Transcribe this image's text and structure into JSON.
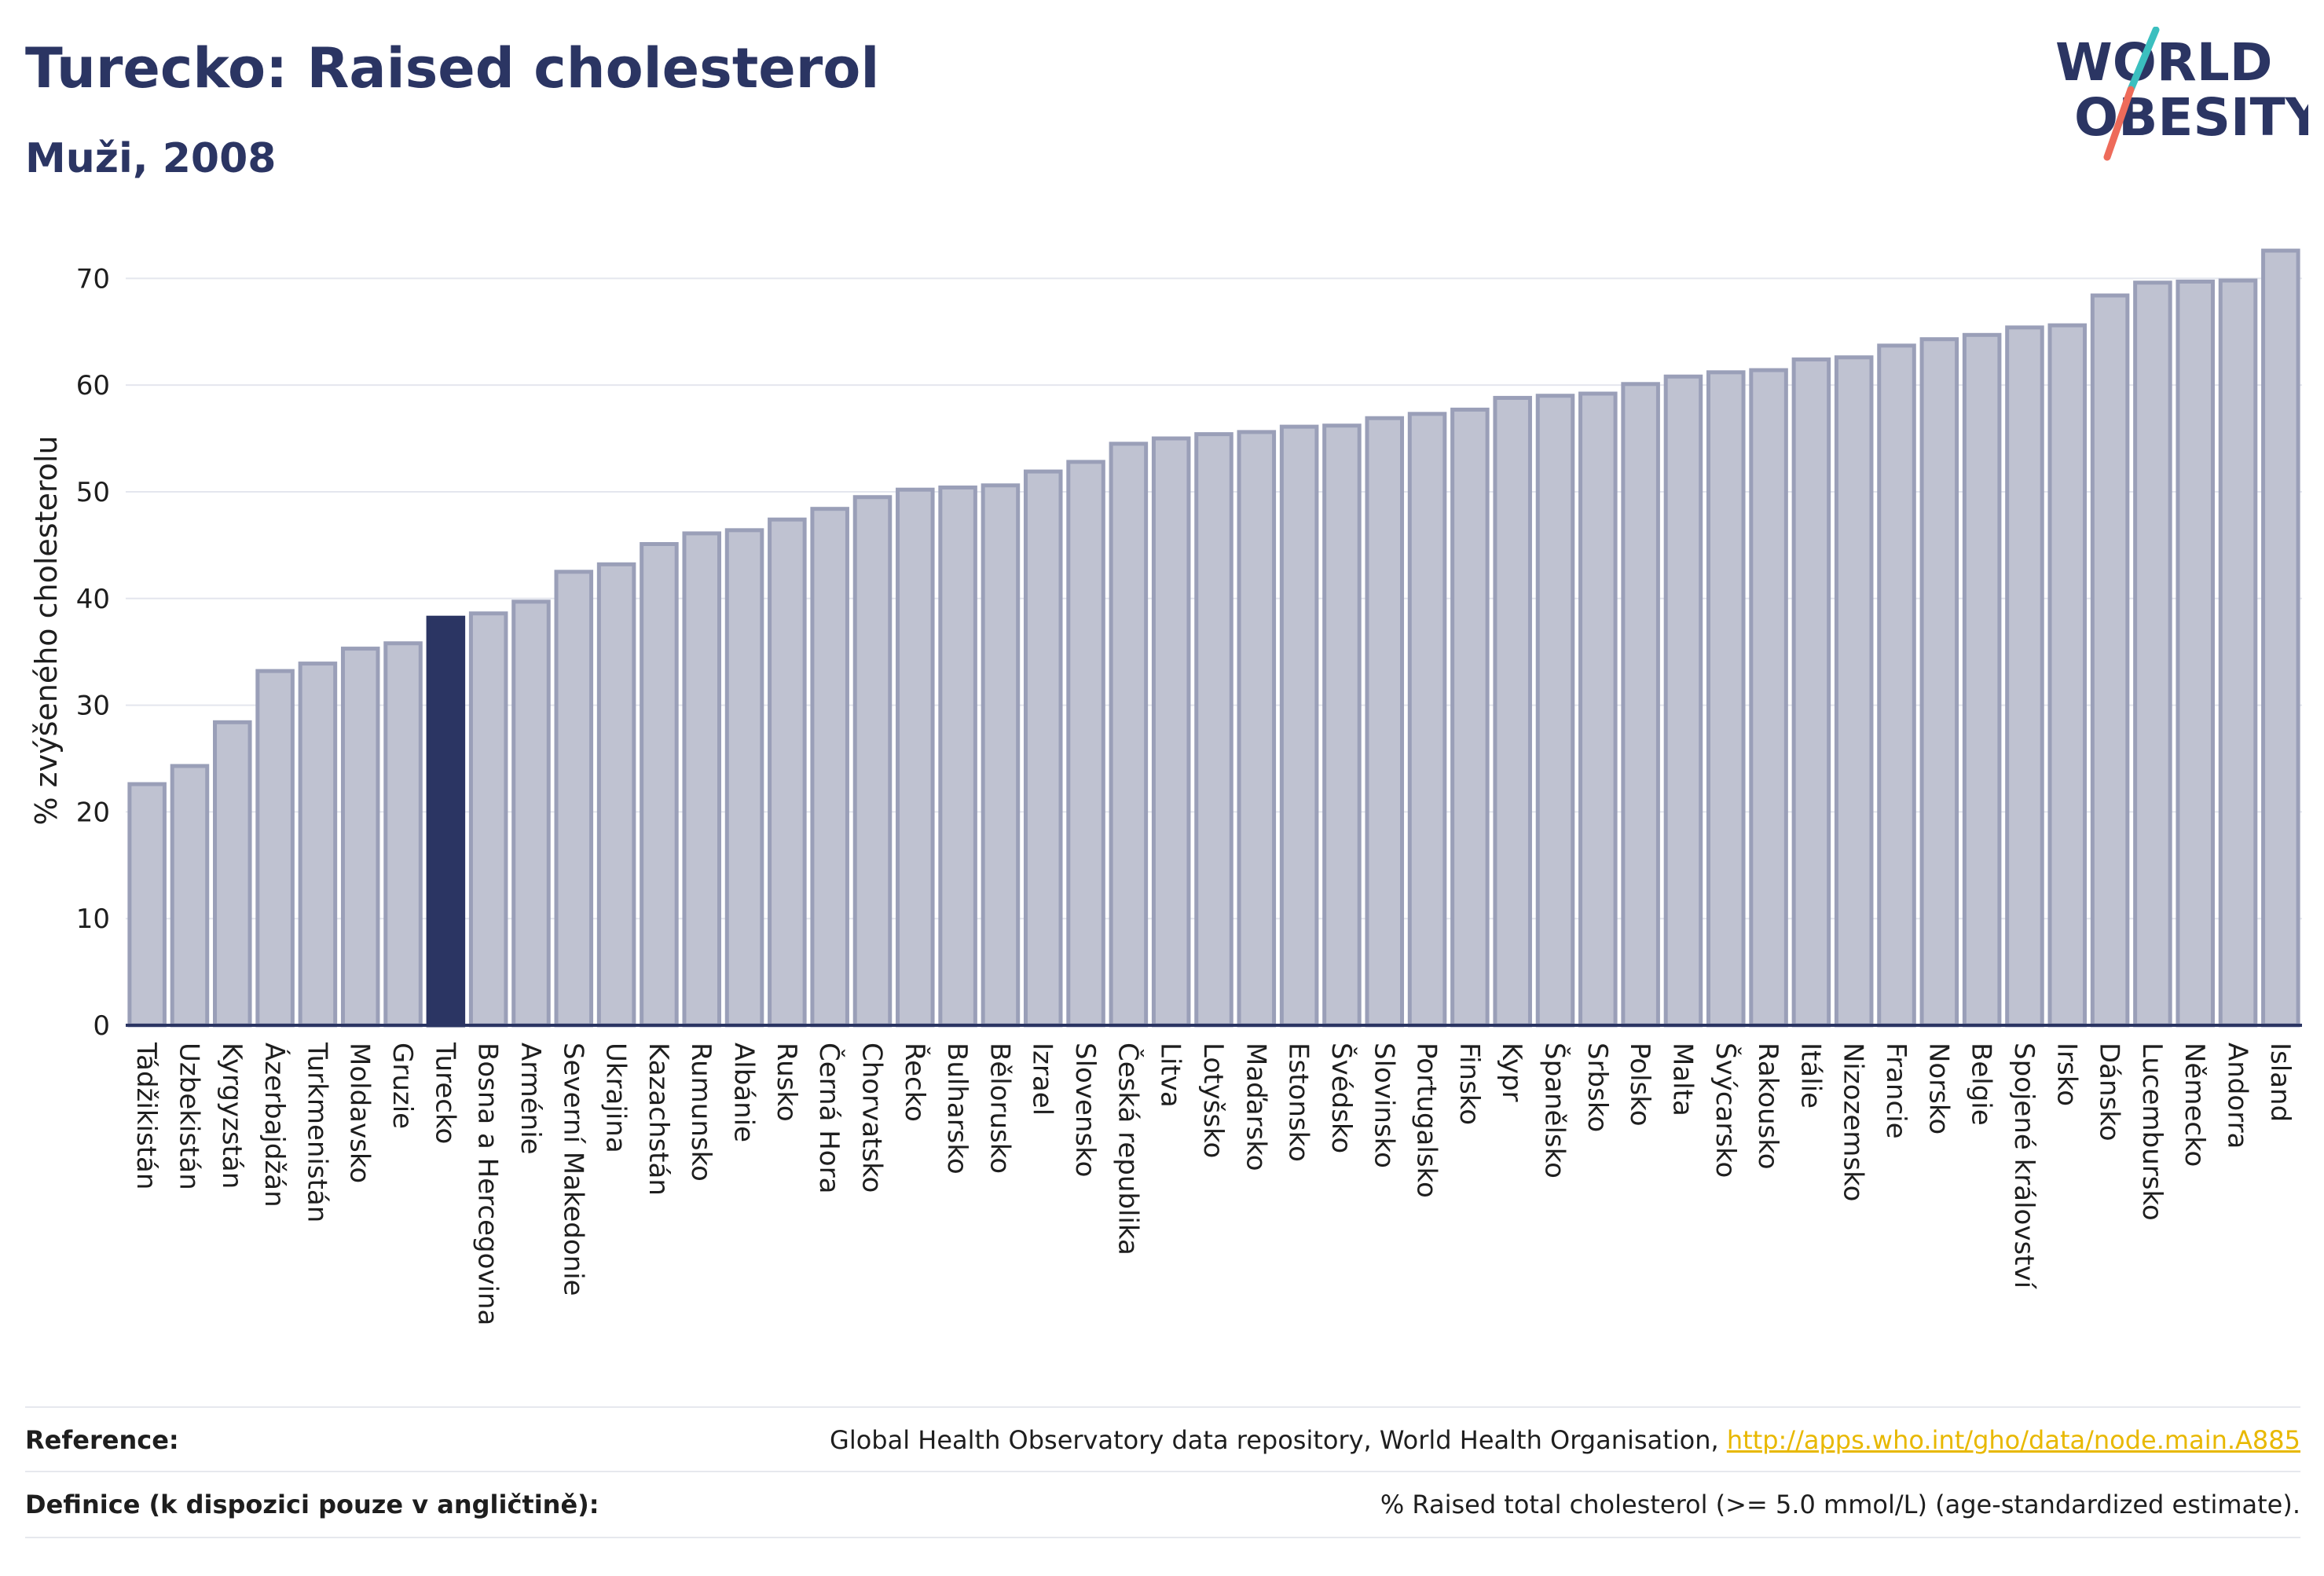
{
  "header": {
    "title": "Turecko: Raised cholesterol",
    "subtitle": "Muži, 2008"
  },
  "logo": {
    "line1": "WORLD",
    "line2": "OBESITY"
  },
  "chart_data": {
    "type": "bar",
    "ylabel": "% zvýšeného cholesterolu",
    "ylim": [
      0,
      74
    ],
    "yticks": [
      0,
      10,
      20,
      30,
      40,
      50,
      60,
      70
    ],
    "grid": true,
    "highlight": "Turecko",
    "colors": {
      "bar": "#bfc2d1",
      "bar_edge": "#9a9fb8",
      "highlight": "#2b3563",
      "axis": "#2b3563",
      "grid": "#e4e6ee",
      "text": "#1e1e1e"
    },
    "categories": [
      "Tádžikistán",
      "Uzbekistán",
      "Kyrgyzstán",
      "Ázerbajdžán",
      "Turkmenistán",
      "Moldavsko",
      "Gruzie",
      "Turecko",
      "Bosna a Hercegovina",
      "Arménie",
      "Severní Makedonie",
      "Ukrajina",
      "Kazachstán",
      "Rumunsko",
      "Albánie",
      "Rusko",
      "Černá Hora",
      "Chorvatsko",
      "Řecko",
      "Bulharsko",
      "Bělorusko",
      "Izrael",
      "Slovensko",
      "Česká republika",
      "Litva",
      "Lotyšsko",
      "Maďarsko",
      "Estonsko",
      "Švédsko",
      "Slovinsko",
      "Portugalsko",
      "Finsko",
      "Kypr",
      "Španělsko",
      "Srbsko",
      "Polsko",
      "Malta",
      "Švýcarsko",
      "Rakousko",
      "Itálie",
      "Nizozemsko",
      "Francie",
      "Norsko",
      "Belgie",
      "Spojené království",
      "Irsko",
      "Dánsko",
      "Lucembursko",
      "Německo",
      "Andorra",
      "Island"
    ],
    "values": [
      22.6,
      24.3,
      28.4,
      33.2,
      33.9,
      35.3,
      35.8,
      38.2,
      38.6,
      39.7,
      42.5,
      43.2,
      45.1,
      46.1,
      46.4,
      47.4,
      48.4,
      49.5,
      50.2,
      50.4,
      50.6,
      51.9,
      52.8,
      54.5,
      55.0,
      55.4,
      55.6,
      56.1,
      56.2,
      56.9,
      57.3,
      57.7,
      58.8,
      59.0,
      59.2,
      60.1,
      60.8,
      61.2,
      61.4,
      62.4,
      62.6,
      63.7,
      64.3,
      64.7,
      65.4,
      65.6,
      68.4,
      69.6,
      69.7,
      69.8,
      72.6
    ]
  },
  "footer": {
    "reference_label": "Reference:",
    "reference_text": "Global Health Observatory data repository, World Health Organisation,",
    "reference_link": "http://apps.who.int/gho/data/node.main.A885",
    "definition_label": "Definice (k dispozici pouze v angličtině):",
    "definition_text": "% Raised total cholesterol (>= 5.0 mmol/L) (age-standardized estimate)."
  }
}
